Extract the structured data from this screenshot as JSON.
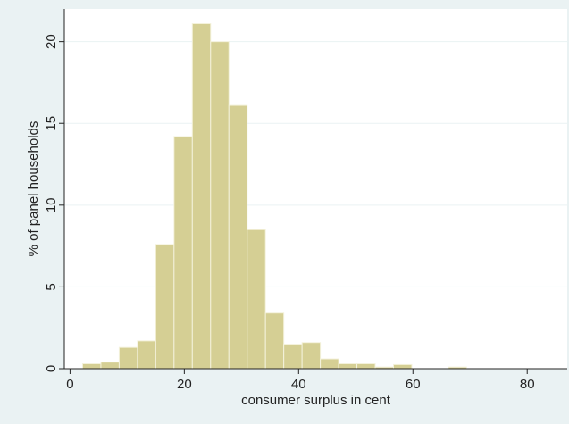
{
  "chart_data": {
    "type": "bar",
    "title": "",
    "xlabel": "consumer surplus in cent",
    "ylabel": "% of panel households",
    "xlim": [
      -1,
      87
    ],
    "ylim": [
      0,
      22
    ],
    "xticks": [
      0,
      20,
      40,
      60,
      80
    ],
    "yticks": [
      0,
      5,
      10,
      15,
      20
    ],
    "grid": true,
    "bin_width": 3.2,
    "bin_start": 2.2,
    "values": [
      0.3,
      0.4,
      1.3,
      1.7,
      7.6,
      14.2,
      21.1,
      20.0,
      16.1,
      8.5,
      3.4,
      1.5,
      1.6,
      0.6,
      0.3,
      0.3,
      0.1,
      0.25,
      0.0,
      0.0,
      0.1,
      0.0,
      0.0,
      0.0,
      0.0,
      0.0,
      0.0,
      0.1,
      0.0,
      0.0,
      0.15,
      0.0,
      0.0,
      0.0,
      0.0
    ],
    "colors": {
      "bar_fill": "#d5cf94",
      "bar_stroke": "#f4f2dc",
      "plot_bg": "#ffffff",
      "outer_bg": "#eaf2f3",
      "grid": "#eaf2f3",
      "axis": "#222222"
    }
  }
}
